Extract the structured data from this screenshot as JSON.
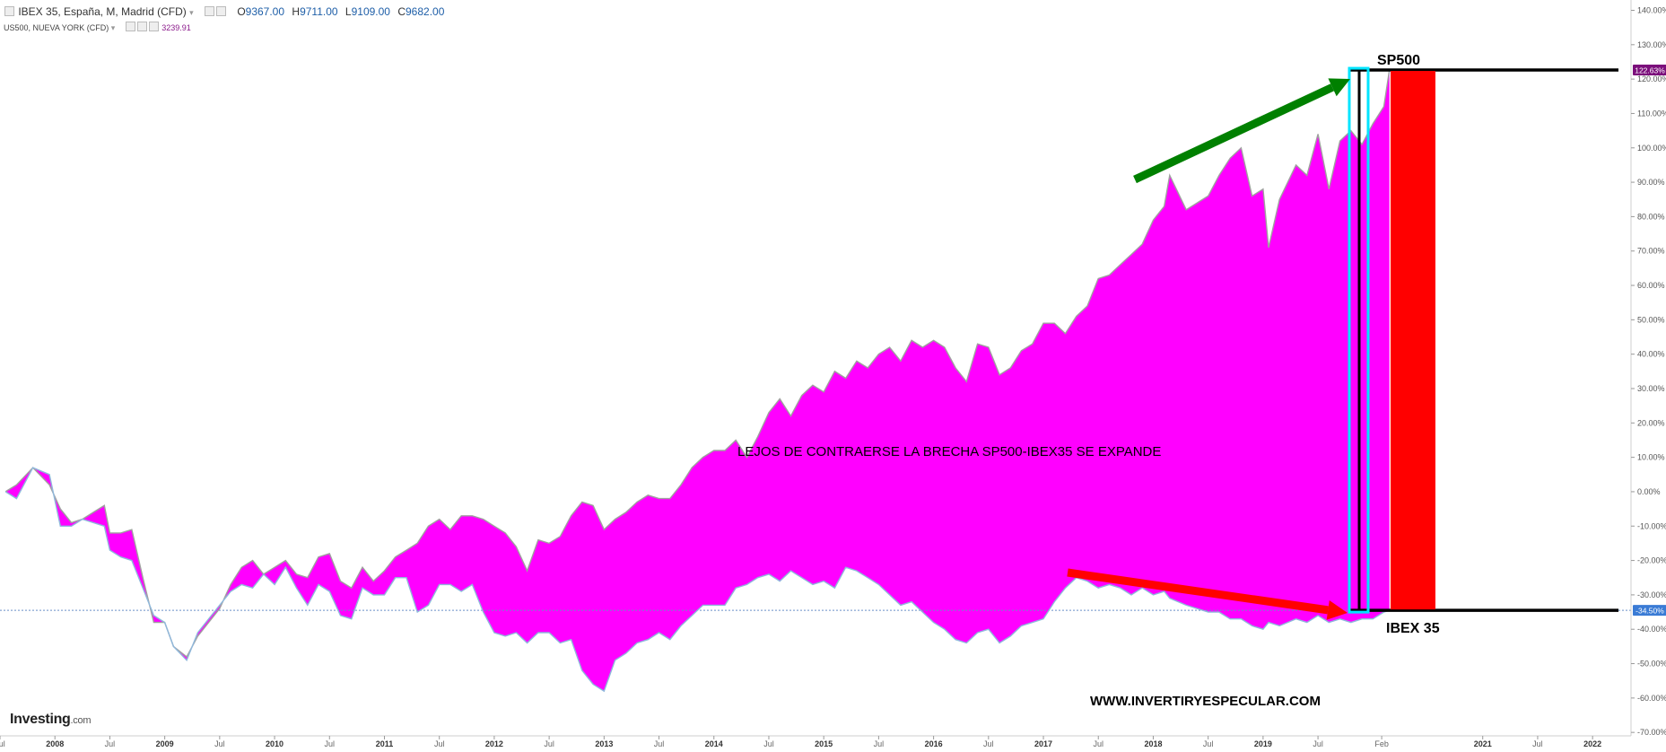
{
  "header": {
    "main_symbol": "IBEX 35, España, M, Madrid (CFD)",
    "ohlc": [
      {
        "key": "O",
        "value": "9367.00"
      },
      {
        "key": "H",
        "value": "9711.00"
      },
      {
        "key": "L",
        "value": "9109.00"
      },
      {
        "key": "C",
        "value": "9682.00"
      }
    ],
    "compare_symbol": "US500, NUEVA YORK (CFD)",
    "compare_value": "3239.91"
  },
  "logo": {
    "main": "Investing",
    "suffix": ".com"
  },
  "annotations": {
    "sp500": "SP500",
    "ibex": "IBEX 35",
    "center": "LEJOS DE CONTRAERSE LA BRECHA SP500-IBEX35 SE EXPANDE",
    "website": "WWW.INVERTIRYESPECULAR.COM"
  },
  "colors": {
    "fill": "#ff00ff",
    "sp500_line": "#a0a0a0",
    "ibex_line": "#8fb8dc",
    "green_arrow": "#008000",
    "red_arrow": "#ff0000",
    "cyan_box": "#00e5ff",
    "red_bar": "#ff0000",
    "badge_sp500": "#7b0f7b",
    "badge_ibex": "#3a7bd5"
  },
  "chart_data": {
    "type": "area",
    "xlim": [
      2007.5,
      2022.35
    ],
    "ylim": [
      -71,
      143
    ],
    "y_unit": "%",
    "y_ticks": [
      140,
      130,
      120,
      110,
      100,
      90,
      80,
      70,
      60,
      50,
      40,
      30,
      20,
      10,
      0,
      -10,
      -20,
      -30,
      -40,
      -50,
      -60,
      -70
    ],
    "x_ticks": [
      {
        "x": 2007.5,
        "label": "Jul"
      },
      {
        "x": 2008.0,
        "label": "2008"
      },
      {
        "x": 2008.5,
        "label": "Jul"
      },
      {
        "x": 2009.0,
        "label": "2009"
      },
      {
        "x": 2009.5,
        "label": "Jul"
      },
      {
        "x": 2010.0,
        "label": "2010"
      },
      {
        "x": 2010.5,
        "label": "Jul"
      },
      {
        "x": 2011.0,
        "label": "2011"
      },
      {
        "x": 2011.5,
        "label": "Jul"
      },
      {
        "x": 2012.0,
        "label": "2012"
      },
      {
        "x": 2012.5,
        "label": "Jul"
      },
      {
        "x": 2013.0,
        "label": "2013"
      },
      {
        "x": 2013.5,
        "label": "Jul"
      },
      {
        "x": 2014.0,
        "label": "2014"
      },
      {
        "x": 2014.5,
        "label": "Jul"
      },
      {
        "x": 2015.0,
        "label": "2015"
      },
      {
        "x": 2015.5,
        "label": "Jul"
      },
      {
        "x": 2016.0,
        "label": "2016"
      },
      {
        "x": 2016.5,
        "label": "Jul"
      },
      {
        "x": 2017.0,
        "label": "2017"
      },
      {
        "x": 2017.5,
        "label": "Jul"
      },
      {
        "x": 2018.0,
        "label": "2018"
      },
      {
        "x": 2018.5,
        "label": "Jul"
      },
      {
        "x": 2019.0,
        "label": "2019"
      },
      {
        "x": 2019.5,
        "label": "Jul"
      },
      {
        "x": 2020.08,
        "label": "Feb"
      },
      {
        "x": 2021.0,
        "label": "2021"
      },
      {
        "x": 2021.5,
        "label": "Jul"
      },
      {
        "x": 2022.0,
        "label": "2022"
      }
    ],
    "series": [
      {
        "name": "US500",
        "color": "#a0a0a0",
        "points": [
          [
            2007.55,
            0
          ],
          [
            2007.65,
            2
          ],
          [
            2007.8,
            7
          ],
          [
            2007.95,
            2
          ],
          [
            2008.05,
            -5
          ],
          [
            2008.15,
            -9
          ],
          [
            2008.25,
            -8
          ],
          [
            2008.35,
            -6
          ],
          [
            2008.45,
            -4
          ],
          [
            2008.5,
            -12
          ],
          [
            2008.6,
            -12
          ],
          [
            2008.7,
            -11
          ],
          [
            2008.8,
            -25
          ],
          [
            2008.9,
            -38
          ],
          [
            2009.0,
            -38
          ],
          [
            2009.08,
            -45
          ],
          [
            2009.2,
            -48
          ],
          [
            2009.3,
            -42
          ],
          [
            2009.4,
            -38
          ],
          [
            2009.5,
            -34
          ],
          [
            2009.6,
            -27
          ],
          [
            2009.7,
            -22
          ],
          [
            2009.8,
            -20
          ],
          [
            2009.9,
            -24
          ],
          [
            2010.0,
            -22
          ],
          [
            2010.1,
            -20
          ],
          [
            2010.2,
            -24
          ],
          [
            2010.3,
            -25
          ],
          [
            2010.4,
            -19
          ],
          [
            2010.5,
            -18
          ],
          [
            2010.6,
            -26
          ],
          [
            2010.7,
            -28
          ],
          [
            2010.8,
            -22
          ],
          [
            2010.9,
            -26
          ],
          [
            2011.0,
            -23
          ],
          [
            2011.1,
            -19
          ],
          [
            2011.2,
            -17
          ],
          [
            2011.3,
            -15
          ],
          [
            2011.4,
            -10
          ],
          [
            2011.5,
            -8
          ],
          [
            2011.6,
            -11
          ],
          [
            2011.7,
            -7
          ],
          [
            2011.8,
            -7
          ],
          [
            2011.9,
            -8
          ],
          [
            2012.0,
            -10
          ],
          [
            2012.1,
            -12
          ],
          [
            2012.2,
            -16
          ],
          [
            2012.3,
            -23
          ],
          [
            2012.4,
            -14
          ],
          [
            2012.5,
            -15
          ],
          [
            2012.6,
            -13
          ],
          [
            2012.7,
            -7
          ],
          [
            2012.8,
            -3
          ],
          [
            2012.9,
            -4
          ],
          [
            2013.0,
            -11
          ],
          [
            2013.1,
            -8
          ],
          [
            2013.2,
            -6
          ],
          [
            2013.3,
            -3
          ],
          [
            2013.4,
            -1
          ],
          [
            2013.5,
            -2
          ],
          [
            2013.6,
            -2
          ],
          [
            2013.7,
            2
          ],
          [
            2013.8,
            7
          ],
          [
            2013.9,
            10
          ],
          [
            2014.0,
            12
          ],
          [
            2014.1,
            12
          ],
          [
            2014.2,
            15
          ],
          [
            2014.3,
            10
          ],
          [
            2014.4,
            16
          ],
          [
            2014.5,
            23
          ],
          [
            2014.6,
            27
          ],
          [
            2014.7,
            22
          ],
          [
            2014.8,
            28
          ],
          [
            2014.9,
            31
          ],
          [
            2015.0,
            29
          ],
          [
            2015.1,
            35
          ],
          [
            2015.2,
            33
          ],
          [
            2015.3,
            38
          ],
          [
            2015.4,
            36
          ],
          [
            2015.5,
            40
          ],
          [
            2015.6,
            42
          ],
          [
            2015.7,
            38
          ],
          [
            2015.8,
            44
          ],
          [
            2015.9,
            42
          ],
          [
            2016.0,
            44
          ],
          [
            2016.1,
            42
          ],
          [
            2016.2,
            36
          ],
          [
            2016.3,
            32
          ],
          [
            2016.4,
            43
          ],
          [
            2016.5,
            42
          ],
          [
            2016.6,
            34
          ],
          [
            2016.7,
            36
          ],
          [
            2016.8,
            41
          ],
          [
            2016.9,
            43
          ],
          [
            2017.0,
            49
          ],
          [
            2017.1,
            49
          ],
          [
            2017.2,
            46
          ],
          [
            2017.3,
            51
          ],
          [
            2017.4,
            54
          ],
          [
            2017.5,
            62
          ],
          [
            2017.6,
            63
          ],
          [
            2017.7,
            66
          ],
          [
            2017.8,
            69
          ],
          [
            2017.9,
            72
          ],
          [
            2018.0,
            79
          ],
          [
            2018.1,
            83
          ],
          [
            2018.15,
            92
          ],
          [
            2018.3,
            82
          ],
          [
            2018.4,
            84
          ],
          [
            2018.5,
            86
          ],
          [
            2018.6,
            92
          ],
          [
            2018.7,
            97
          ],
          [
            2018.8,
            100
          ],
          [
            2018.9,
            86
          ],
          [
            2019.0,
            88
          ],
          [
            2019.05,
            71
          ],
          [
            2019.15,
            85
          ],
          [
            2019.3,
            95
          ],
          [
            2019.4,
            92
          ],
          [
            2019.5,
            104
          ],
          [
            2019.6,
            88
          ],
          [
            2019.7,
            102
          ],
          [
            2019.8,
            105
          ],
          [
            2019.9,
            101
          ],
          [
            2020.0,
            107
          ],
          [
            2020.1,
            112
          ],
          [
            2020.15,
            122.63
          ]
        ]
      },
      {
        "name": "IBEX 35",
        "color": "#8fb8dc",
        "points": [
          [
            2007.55,
            0
          ],
          [
            2007.65,
            -2
          ],
          [
            2007.8,
            7
          ],
          [
            2007.95,
            5
          ],
          [
            2008.05,
            -10
          ],
          [
            2008.15,
            -10
          ],
          [
            2008.25,
            -8
          ],
          [
            2008.35,
            -9
          ],
          [
            2008.45,
            -10
          ],
          [
            2008.5,
            -17
          ],
          [
            2008.6,
            -19
          ],
          [
            2008.7,
            -20
          ],
          [
            2008.8,
            -28
          ],
          [
            2008.9,
            -36
          ],
          [
            2009.0,
            -38
          ],
          [
            2009.08,
            -45
          ],
          [
            2009.2,
            -49
          ],
          [
            2009.3,
            -41
          ],
          [
            2009.4,
            -37
          ],
          [
            2009.5,
            -33
          ],
          [
            2009.6,
            -29
          ],
          [
            2009.7,
            -27
          ],
          [
            2009.8,
            -28
          ],
          [
            2009.9,
            -24
          ],
          [
            2010.0,
            -27
          ],
          [
            2010.1,
            -22
          ],
          [
            2010.2,
            -28
          ],
          [
            2010.3,
            -33
          ],
          [
            2010.4,
            -27
          ],
          [
            2010.5,
            -29
          ],
          [
            2010.6,
            -36
          ],
          [
            2010.7,
            -37
          ],
          [
            2010.8,
            -28
          ],
          [
            2010.9,
            -30
          ],
          [
            2011.0,
            -30
          ],
          [
            2011.1,
            -25
          ],
          [
            2011.2,
            -25
          ],
          [
            2011.3,
            -35
          ],
          [
            2011.4,
            -33
          ],
          [
            2011.5,
            -27
          ],
          [
            2011.6,
            -27
          ],
          [
            2011.7,
            -29
          ],
          [
            2011.8,
            -27
          ],
          [
            2011.9,
            -35
          ],
          [
            2012.0,
            -41
          ],
          [
            2012.1,
            -42
          ],
          [
            2012.2,
            -41
          ],
          [
            2012.3,
            -44
          ],
          [
            2012.4,
            -41
          ],
          [
            2012.5,
            -41
          ],
          [
            2012.6,
            -44
          ],
          [
            2012.7,
            -43
          ],
          [
            2012.8,
            -52
          ],
          [
            2012.9,
            -56
          ],
          [
            2013.0,
            -58
          ],
          [
            2013.1,
            -49
          ],
          [
            2013.2,
            -47
          ],
          [
            2013.3,
            -44
          ],
          [
            2013.4,
            -43
          ],
          [
            2013.5,
            -41
          ],
          [
            2013.6,
            -43
          ],
          [
            2013.7,
            -39
          ],
          [
            2013.8,
            -36
          ],
          [
            2013.9,
            -33
          ],
          [
            2014.0,
            -33
          ],
          [
            2014.1,
            -33
          ],
          [
            2014.2,
            -28
          ],
          [
            2014.3,
            -27
          ],
          [
            2014.4,
            -25
          ],
          [
            2014.5,
            -24
          ],
          [
            2014.6,
            -26
          ],
          [
            2014.7,
            -23
          ],
          [
            2014.8,
            -25
          ],
          [
            2014.9,
            -27
          ],
          [
            2015.0,
            -26
          ],
          [
            2015.1,
            -28
          ],
          [
            2015.2,
            -22
          ],
          [
            2015.3,
            -23
          ],
          [
            2015.4,
            -25
          ],
          [
            2015.5,
            -27
          ],
          [
            2015.6,
            -30
          ],
          [
            2015.7,
            -33
          ],
          [
            2015.8,
            -32
          ],
          [
            2015.9,
            -35
          ],
          [
            2016.0,
            -38
          ],
          [
            2016.1,
            -40
          ],
          [
            2016.2,
            -43
          ],
          [
            2016.3,
            -44
          ],
          [
            2016.4,
            -41
          ],
          [
            2016.5,
            -40
          ],
          [
            2016.6,
            -44
          ],
          [
            2016.7,
            -42
          ],
          [
            2016.8,
            -39
          ],
          [
            2016.9,
            -38
          ],
          [
            2017.0,
            -37
          ],
          [
            2017.1,
            -32
          ],
          [
            2017.2,
            -28
          ],
          [
            2017.3,
            -25
          ],
          [
            2017.4,
            -26
          ],
          [
            2017.5,
            -28
          ],
          [
            2017.6,
            -27
          ],
          [
            2017.7,
            -28
          ],
          [
            2017.8,
            -30
          ],
          [
            2017.9,
            -28
          ],
          [
            2018.0,
            -30
          ],
          [
            2018.1,
            -29
          ],
          [
            2018.15,
            -31
          ],
          [
            2018.3,
            -33
          ],
          [
            2018.4,
            -34
          ],
          [
            2018.5,
            -35
          ],
          [
            2018.6,
            -35
          ],
          [
            2018.7,
            -37
          ],
          [
            2018.8,
            -37
          ],
          [
            2018.9,
            -39
          ],
          [
            2019.0,
            -40
          ],
          [
            2019.05,
            -38
          ],
          [
            2019.15,
            -39
          ],
          [
            2019.3,
            -37
          ],
          [
            2019.4,
            -38
          ],
          [
            2019.5,
            -36
          ],
          [
            2019.6,
            -38
          ],
          [
            2019.7,
            -37
          ],
          [
            2019.8,
            -38
          ],
          [
            2019.9,
            -37
          ],
          [
            2020.0,
            -37
          ],
          [
            2020.1,
            -35
          ],
          [
            2020.15,
            -34.5
          ]
        ]
      }
    ],
    "last_values": [
      {
        "name": "US500",
        "label": "122.63%",
        "value": 122.63
      },
      {
        "name": "IBEX 35",
        "label": "-34.50%",
        "value": -34.5
      }
    ],
    "reference_line": -34.5
  }
}
